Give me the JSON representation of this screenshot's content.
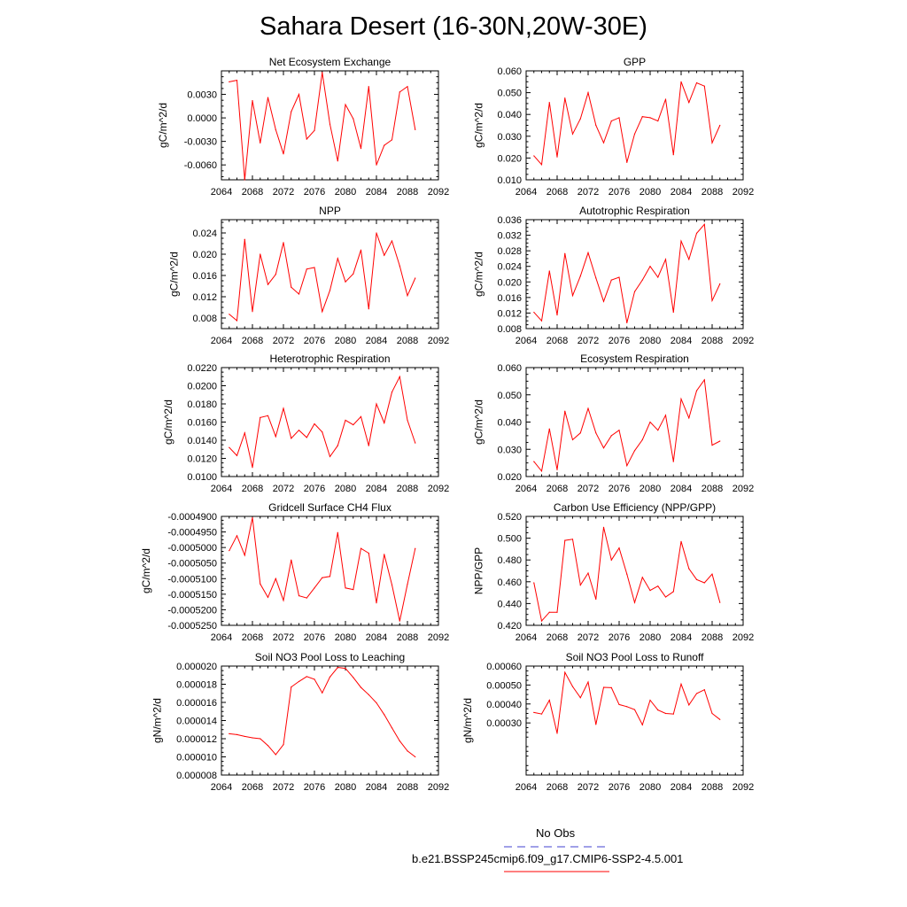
{
  "title": "Sahara Desert (16-30N,20W-30E)",
  "legend": {
    "obs_label": "No Obs",
    "obs_color": "#4040d0",
    "model_label": "b.e21.BSSP245cmip6.f09_g17.CMIP6-SSP2-4.5.001",
    "model_color": "#ff0000"
  },
  "chart_data": [
    {
      "type": "line",
      "title": "Net Ecosystem Exchange",
      "ylabel": "gC/m^2/d",
      "xlim": [
        2064,
        2092
      ],
      "xticks": [
        2064,
        2068,
        2072,
        2076,
        2080,
        2084,
        2088,
        2092
      ],
      "ylim": [
        -0.0079,
        0.006
      ],
      "yticks": [
        "0.0030",
        "0.0000",
        "-0.0030",
        "-0.0060"
      ],
      "ytick_values": [
        0.003,
        0.0,
        -0.003,
        -0.006
      ],
      "x": [
        2065,
        2066,
        2067,
        2068,
        2069,
        2070,
        2071,
        2072,
        2073,
        2074,
        2075,
        2076,
        2077,
        2078,
        2079,
        2080,
        2081,
        2082,
        2083,
        2084,
        2085,
        2086,
        2087,
        2088,
        2089
      ],
      "series": [
        {
          "values": [
            0.0046,
            0.0048,
            -0.0079,
            0.0022,
            -0.0032,
            0.0026,
            -0.0015,
            -0.0046,
            0.0008,
            0.003,
            -0.0027,
            -0.0016,
            0.0058,
            -0.0008,
            -0.0055,
            0.0017,
            -0.0001,
            -0.0039,
            0.004,
            -0.006,
            -0.0035,
            -0.0028,
            0.0033,
            0.004,
            -0.0015
          ]
        }
      ]
    },
    {
      "type": "line",
      "title": "GPP",
      "ylabel": "gC/m^2/d",
      "xlim": [
        2064,
        2092
      ],
      "xticks": [
        2064,
        2068,
        2072,
        2076,
        2080,
        2084,
        2088,
        2092
      ],
      "ylim": [
        0.01,
        0.06
      ],
      "yticks": [
        "0.060",
        "0.050",
        "0.040",
        "0.030",
        "0.020",
        "0.010"
      ],
      "ytick_values": [
        0.06,
        0.05,
        0.04,
        0.03,
        0.02,
        0.01
      ],
      "x": [
        2065,
        2066,
        2067,
        2068,
        2069,
        2070,
        2071,
        2072,
        2073,
        2074,
        2075,
        2076,
        2077,
        2078,
        2079,
        2080,
        2081,
        2082,
        2083,
        2084,
        2085,
        2086,
        2087,
        2088,
        2089
      ],
      "series": [
        {
          "values": [
            0.021,
            0.017,
            0.0455,
            0.0205,
            0.0475,
            0.031,
            0.038,
            0.05,
            0.035,
            0.027,
            0.037,
            0.0385,
            0.018,
            0.031,
            0.039,
            0.0385,
            0.037,
            0.047,
            0.0215,
            0.055,
            0.0455,
            0.0545,
            0.053,
            0.027,
            0.035
          ]
        }
      ]
    },
    {
      "type": "line",
      "title": "NPP",
      "ylabel": "gC/m^2/d",
      "xlim": [
        2064,
        2092
      ],
      "xticks": [
        2064,
        2068,
        2072,
        2076,
        2080,
        2084,
        2088,
        2092
      ],
      "ylim": [
        0.006,
        0.0265
      ],
      "yticks": [
        "0.024",
        "0.020",
        "0.016",
        "0.012",
        "0.008"
      ],
      "ytick_values": [
        0.024,
        0.02,
        0.016,
        0.012,
        0.008
      ],
      "x": [
        2065,
        2066,
        2067,
        2068,
        2069,
        2070,
        2071,
        2072,
        2073,
        2074,
        2075,
        2076,
        2077,
        2078,
        2079,
        2080,
        2081,
        2082,
        2083,
        2084,
        2085,
        2086,
        2087,
        2088,
        2089
      ],
      "series": [
        {
          "values": [
            0.0087,
            0.0075,
            0.0228,
            0.0092,
            0.02,
            0.0143,
            0.0162,
            0.0222,
            0.0138,
            0.0125,
            0.0172,
            0.0175,
            0.0092,
            0.0132,
            0.0192,
            0.0148,
            0.0163,
            0.0208,
            0.0097,
            0.024,
            0.0198,
            0.0225,
            0.0178,
            0.0122,
            0.0155
          ]
        }
      ]
    },
    {
      "type": "line",
      "title": "Autotrophic Respiration",
      "ylabel": "gC/m^2/d",
      "xlim": [
        2064,
        2092
      ],
      "xticks": [
        2064,
        2068,
        2072,
        2076,
        2080,
        2084,
        2088,
        2092
      ],
      "ylim": [
        0.008,
        0.036
      ],
      "yticks": [
        "0.036",
        "0.032",
        "0.028",
        "0.024",
        "0.020",
        "0.016",
        "0.012",
        "0.008"
      ],
      "ytick_values": [
        0.036,
        0.032,
        0.028,
        0.024,
        0.02,
        0.016,
        0.012,
        0.008
      ],
      "x": [
        2065,
        2066,
        2067,
        2068,
        2069,
        2070,
        2071,
        2072,
        2073,
        2074,
        2075,
        2076,
        2077,
        2078,
        2079,
        2080,
        2081,
        2082,
        2083,
        2084,
        2085,
        2086,
        2087,
        2088,
        2089
      ],
      "series": [
        {
          "values": [
            0.0122,
            0.01,
            0.0228,
            0.0115,
            0.0273,
            0.0165,
            0.0215,
            0.0275,
            0.021,
            0.015,
            0.0205,
            0.0212,
            0.0095,
            0.0175,
            0.0205,
            0.024,
            0.0212,
            0.0258,
            0.0122,
            0.0305,
            0.0258,
            0.0325,
            0.0348,
            0.0152,
            0.0195
          ]
        }
      ]
    },
    {
      "type": "line",
      "title": "Heterotrophic Respiration",
      "ylabel": "gC/m^2/d",
      "xlim": [
        2064,
        2092
      ],
      "xticks": [
        2064,
        2068,
        2072,
        2076,
        2080,
        2084,
        2088,
        2092
      ],
      "ylim": [
        0.01,
        0.022
      ],
      "yticks": [
        "0.0220",
        "0.0200",
        "0.0180",
        "0.0160",
        "0.0140",
        "0.0120",
        "0.0100"
      ],
      "ytick_values": [
        0.022,
        0.02,
        0.018,
        0.016,
        0.014,
        0.012,
        0.01
      ],
      "x": [
        2065,
        2066,
        2067,
        2068,
        2069,
        2070,
        2071,
        2072,
        2073,
        2074,
        2075,
        2076,
        2077,
        2078,
        2079,
        2080,
        2081,
        2082,
        2083,
        2084,
        2085,
        2086,
        2087,
        2088,
        2089
      ],
      "series": [
        {
          "values": [
            0.0132,
            0.0123,
            0.0148,
            0.011,
            0.0165,
            0.0167,
            0.0144,
            0.0175,
            0.0142,
            0.0151,
            0.0143,
            0.0158,
            0.0149,
            0.0122,
            0.0134,
            0.0162,
            0.0157,
            0.0166,
            0.0134,
            0.018,
            0.0159,
            0.0193,
            0.021,
            0.0162,
            0.0137
          ]
        }
      ]
    },
    {
      "type": "line",
      "title": "Ecosystem Respiration",
      "ylabel": "gC/m^2/d",
      "xlim": [
        2064,
        2092
      ],
      "xticks": [
        2064,
        2068,
        2072,
        2076,
        2080,
        2084,
        2088,
        2092
      ],
      "ylim": [
        0.02,
        0.06
      ],
      "yticks": [
        "0.060",
        "0.050",
        "0.040",
        "0.030",
        "0.020"
      ],
      "ytick_values": [
        0.06,
        0.05,
        0.04,
        0.03,
        0.02
      ],
      "x": [
        2065,
        2066,
        2067,
        2068,
        2069,
        2070,
        2071,
        2072,
        2073,
        2074,
        2075,
        2076,
        2077,
        2078,
        2079,
        2080,
        2081,
        2082,
        2083,
        2084,
        2085,
        2086,
        2087,
        2088,
        2089
      ],
      "series": [
        {
          "values": [
            0.0255,
            0.022,
            0.0375,
            0.0225,
            0.044,
            0.0335,
            0.036,
            0.045,
            0.036,
            0.0305,
            0.035,
            0.037,
            0.024,
            0.0295,
            0.0335,
            0.04,
            0.037,
            0.0425,
            0.0255,
            0.0485,
            0.0415,
            0.0515,
            0.0555,
            0.0315,
            0.033
          ]
        }
      ]
    },
    {
      "type": "line",
      "title": "Gridcell Surface CH4 Flux",
      "ylabel": "gC/m^2/d",
      "xlim": [
        2064,
        2092
      ],
      "xticks": [
        2064,
        2068,
        2072,
        2076,
        2080,
        2084,
        2088,
        2092
      ],
      "ylim": [
        -0.000525,
        -0.00049
      ],
      "yticks": [
        "-0.0004900",
        "-0.0004950",
        "-0.0005000",
        "-0.0005050",
        "-0.0005100",
        "-0.0005150",
        "-0.0005200",
        "-0.0005250"
      ],
      "ytick_values": [
        -0.00049,
        -0.000495,
        -0.0005,
        -0.000505,
        -0.00051,
        -0.000515,
        -0.00052,
        -0.000525
      ],
      "x": [
        2065,
        2066,
        2067,
        2068,
        2069,
        2070,
        2071,
        2072,
        2073,
        2074,
        2075,
        2076,
        2077,
        2078,
        2079,
        2080,
        2081,
        2082,
        2083,
        2084,
        2085,
        2086,
        2087,
        2088,
        2089
      ],
      "series": [
        {
          "values": [
            -0.000501,
            -0.0004962,
            -0.0005025,
            -0.0004904,
            -0.0005117,
            -0.000516,
            -0.00051,
            -0.000517,
            -0.000504,
            -0.0005155,
            -0.0005162,
            -0.000513,
            -0.0005097,
            -0.0005093,
            -0.0004952,
            -0.000513,
            -0.0005135,
            -0.0005003,
            -0.0005018,
            -0.0005178,
            -0.0005022,
            -0.000512,
            -0.0005236,
            -0.0005118,
            -0.0005003
          ]
        }
      ]
    },
    {
      "type": "line",
      "title": "Carbon Use Efficiency (NPP/GPP)",
      "ylabel": "NPP/GPP",
      "xlim": [
        2064,
        2092
      ],
      "xticks": [
        2064,
        2068,
        2072,
        2076,
        2080,
        2084,
        2088,
        2092
      ],
      "ylim": [
        0.42,
        0.52
      ],
      "yticks": [
        "0.520",
        "0.500",
        "0.480",
        "0.460",
        "0.440",
        "0.420"
      ],
      "ytick_values": [
        0.52,
        0.5,
        0.48,
        0.46,
        0.44,
        0.42
      ],
      "x": [
        2065,
        2066,
        2067,
        2068,
        2069,
        2070,
        2071,
        2072,
        2073,
        2074,
        2075,
        2076,
        2077,
        2078,
        2079,
        2080,
        2081,
        2082,
        2083,
        2084,
        2085,
        2086,
        2087,
        2088,
        2089
      ],
      "series": [
        {
          "values": [
            0.459,
            0.424,
            0.432,
            0.432,
            0.498,
            0.499,
            0.457,
            0.468,
            0.444,
            0.51,
            0.48,
            0.491,
            0.467,
            0.441,
            0.464,
            0.452,
            0.456,
            0.446,
            0.451,
            0.497,
            0.472,
            0.462,
            0.459,
            0.467,
            0.441
          ]
        }
      ]
    },
    {
      "type": "line",
      "title": "Soil NO3 Pool Loss to Leaching",
      "ylabel": "gN/m^2/d",
      "xlim": [
        2064,
        2092
      ],
      "xticks": [
        2064,
        2068,
        2072,
        2076,
        2080,
        2084,
        2088,
        2092
      ],
      "ylim": [
        8e-06,
        2e-05
      ],
      "yticks": [
        "0.000020",
        "0.000018",
        "0.000016",
        "0.000014",
        "0.000012",
        "0.000010",
        "0.000008"
      ],
      "ytick_values": [
        2e-05,
        1.8e-05,
        1.6e-05,
        1.4e-05,
        1.2e-05,
        1e-05,
        8e-06
      ],
      "x": [
        2065,
        2066,
        2067,
        2068,
        2069,
        2070,
        2071,
        2072,
        2073,
        2074,
        2075,
        2076,
        2077,
        2078,
        2079,
        2080,
        2081,
        2082,
        2083,
        2084,
        2085,
        2086,
        2087,
        2088,
        2089
      ],
      "series": [
        {
          "values": [
            1.255e-05,
            1.245e-05,
            1.225e-05,
            1.21e-05,
            1.2e-05,
            1.125e-05,
            1.025e-05,
            1.135e-05,
            1.77e-05,
            1.83e-05,
            1.885e-05,
            1.855e-05,
            1.705e-05,
            1.88e-05,
            1.985e-05,
            1.975e-05,
            1.875e-05,
            1.765e-05,
            1.685e-05,
            1.595e-05,
            1.465e-05,
            1.32e-05,
            1.175e-05,
            1.065e-05,
            1e-05
          ]
        }
      ]
    },
    {
      "type": "line",
      "title": "Soil NO3 Pool Loss to Runoff",
      "ylabel": "gN/m^2/d",
      "xlim": [
        2064,
        2092
      ],
      "xticks": [
        2064,
        2068,
        2072,
        2076,
        2080,
        2084,
        2088,
        2092
      ],
      "ylim": [
        2.5e-05,
        0.0006
      ],
      "yticks": [
        "0.00060",
        "0.00050",
        "0.00040",
        "0.00030"
      ],
      "ytick_values": [
        0.0006,
        0.0005,
        0.0004,
        0.0003
      ],
      "x": [
        2065,
        2066,
        2067,
        2068,
        2069,
        2070,
        2071,
        2072,
        2073,
        2074,
        2075,
        2076,
        2077,
        2078,
        2079,
        2080,
        2081,
        2082,
        2083,
        2084,
        2085,
        2086,
        2087,
        2088,
        2089
      ],
      "series": [
        {
          "values": [
            0.000355,
            0.000347,
            0.00042,
            0.000245,
            0.000567,
            0.000492,
            0.000433,
            0.000516,
            0.000292,
            0.000488,
            0.000486,
            0.000397,
            0.000386,
            0.00037,
            0.00029,
            0.00042,
            0.000368,
            0.00035,
            0.000347,
            0.000505,
            0.000395,
            0.000455,
            0.000475,
            0.00035,
            0.000318
          ]
        }
      ]
    }
  ]
}
